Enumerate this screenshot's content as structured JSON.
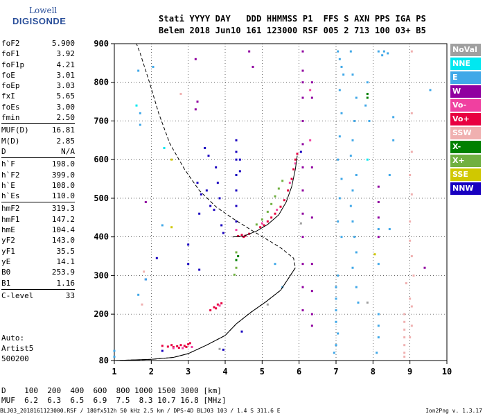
{
  "logo": {
    "line1": "Lowell",
    "line2": "DIGISONDE"
  },
  "header": {
    "line1": "Stati YYYY DAY   DDD HHMMSS P1  FFS S AXN PPS IGA PS",
    "line2": "Belem 2018 Jun10 161 123000 RSF 005 2 713 100 03+ B5"
  },
  "params": [
    [
      {
        "k": "foF2",
        "v": "5.900"
      },
      {
        "k": "foF1",
        "v": "3.92"
      },
      {
        "k": "foF1p",
        "v": "4.21"
      },
      {
        "k": "foE",
        "v": "3.01"
      },
      {
        "k": "foEp",
        "v": "3.03"
      },
      {
        "k": "fxI",
        "v": "5.65"
      },
      {
        "k": "foEs",
        "v": "3.00"
      },
      {
        "k": "fmin",
        "v": "2.50"
      }
    ],
    [
      {
        "k": "MUF(D)",
        "v": "16.81"
      },
      {
        "k": "M(D)",
        "v": "2.85"
      },
      {
        "k": "D",
        "v": "N/A"
      }
    ],
    [
      {
        "k": "h`F",
        "v": "198.0"
      },
      {
        "k": "h`F2",
        "v": "399.0"
      },
      {
        "k": "h`E",
        "v": "108.0"
      },
      {
        "k": "h`Es",
        "v": "110.0"
      }
    ],
    [
      {
        "k": "hmF2",
        "v": "319.3"
      },
      {
        "k": "hmF1",
        "v": "147.2"
      },
      {
        "k": "hmE",
        "v": "104.4"
      },
      {
        "k": "yF2",
        "v": "143.0"
      },
      {
        "k": "yF1",
        "v": "35.5"
      },
      {
        "k": "yE",
        "v": "14.1"
      },
      {
        "k": "B0",
        "v": "253.9"
      },
      {
        "k": "B1",
        "v": "1.16"
      }
    ],
    [
      {
        "k": "C-level",
        "v": "33"
      }
    ]
  ],
  "artist": {
    "l1": "Auto:",
    "l2": "Artist5",
    "l3": "500200"
  },
  "muf_table": {
    "d_label": "D  ",
    "d_values": "  100  200  400  600  800 1000 1500 3000 [km]",
    "muf_label": "MUF",
    "muf_values": "  6.2  6.3  6.5  6.9  7.5  8.3 10.7 16.8 [MHz]"
  },
  "footer": "BLJ03_2018161123000.RSF / 180fx512h 50 kHz 2.5 km / DPS-4D BLJ03 103 / 1.4 S 311.6 E",
  "footer_version": "Ion2Png v. 1.3.17",
  "legend": [
    {
      "label": "NoVal",
      "color": "#a0a0a0"
    },
    {
      "label": "NNE",
      "color": "#00e8f0"
    },
    {
      "label": "E",
      "color": "#40a8e8"
    },
    {
      "label": "W",
      "color": "#9000a0"
    },
    {
      "label": "Vo-",
      "color": "#f040a0"
    },
    {
      "label": "Vo+",
      "color": "#e80040"
    },
    {
      "label": "SSW",
      "color": "#f0b0b0"
    },
    {
      "label": "X-",
      "color": "#008000"
    },
    {
      "label": "X+",
      "color": "#70b040"
    },
    {
      "label": "SSE",
      "color": "#d0c800"
    },
    {
      "label": "NNW",
      "color": "#1800c0"
    }
  ],
  "chart_data": {
    "type": "scatter",
    "x_ticks": [
      "1",
      "2",
      "3",
      "4",
      "5",
      "6",
      "7",
      "8",
      "9",
      "10"
    ],
    "y_ticks": [
      "80",
      "200",
      "300",
      "400",
      "500",
      "600",
      "700",
      "800",
      "900"
    ],
    "xlim": [
      1,
      10
    ],
    "ylim": [
      80,
      900
    ],
    "grid": true,
    "profile_curve": [
      [
        1.0,
        80
      ],
      [
        2.0,
        83
      ],
      [
        2.6,
        88
      ],
      [
        3.0,
        98
      ],
      [
        3.5,
        120
      ],
      [
        4.0,
        145
      ],
      [
        4.3,
        175
      ],
      [
        4.7,
        205
      ],
      [
        5.1,
        232
      ],
      [
        5.5,
        262
      ],
      [
        5.75,
        298
      ],
      [
        5.9,
        320
      ],
      [
        5.85,
        345
      ],
      [
        5.5,
        372
      ],
      [
        5.1,
        395
      ],
      [
        4.7,
        418
      ],
      [
        4.2,
        448
      ],
      [
        3.75,
        478
      ],
      [
        3.3,
        520
      ],
      [
        2.9,
        575
      ],
      [
        2.5,
        642
      ],
      [
        2.2,
        720
      ],
      [
        1.95,
        800
      ],
      [
        1.7,
        875
      ],
      [
        1.6,
        900
      ]
    ],
    "trace_curve": [
      [
        4.2,
        400
      ],
      [
        4.5,
        402
      ],
      [
        4.85,
        415
      ],
      [
        5.15,
        432
      ],
      [
        5.45,
        457
      ],
      [
        5.65,
        490
      ],
      [
        5.8,
        530
      ],
      [
        5.9,
        575
      ],
      [
        5.95,
        610
      ]
    ],
    "echo_series": [
      {
        "name": "Vo+",
        "color": "#e80040",
        "points": [
          [
            2.3,
            118
          ],
          [
            2.45,
            116
          ],
          [
            2.6,
            115
          ],
          [
            2.7,
            117
          ],
          [
            2.8,
            120
          ],
          [
            2.9,
            118
          ],
          [
            3.0,
            122
          ],
          [
            3.05,
            125
          ],
          [
            2.95,
            115
          ],
          [
            2.75,
            113
          ],
          [
            2.55,
            120
          ],
          [
            3.6,
            210
          ],
          [
            3.7,
            218
          ],
          [
            3.8,
            225
          ],
          [
            3.9,
            228
          ],
          [
            3.75,
            215
          ],
          [
            4.35,
            402
          ],
          [
            4.45,
            405
          ],
          [
            4.55,
            403
          ],
          [
            4.65,
            408
          ],
          [
            4.5,
            400
          ],
          [
            4.95,
            425
          ],
          [
            5.05,
            430
          ],
          [
            5.15,
            440
          ],
          [
            5.25,
            450
          ],
          [
            5.35,
            460
          ],
          [
            5.5,
            478
          ],
          [
            5.6,
            495
          ],
          [
            5.7,
            520
          ],
          [
            5.8,
            550
          ],
          [
            5.85,
            575
          ],
          [
            5.9,
            600
          ],
          [
            5.95,
            615
          ]
        ]
      },
      {
        "name": "Vo-",
        "color": "#f040a0",
        "points": [
          [
            2.6,
            112
          ],
          [
            2.85,
            112
          ],
          [
            3.1,
            115
          ],
          [
            3.85,
            222
          ],
          [
            4.3,
            418
          ],
          [
            5.0,
            435
          ],
          [
            5.4,
            470
          ],
          [
            5.75,
            540
          ],
          [
            5.9,
            590
          ],
          [
            6.3,
            780
          ],
          [
            6.3,
            650
          ]
        ]
      },
      {
        "name": "X+",
        "color": "#70b040",
        "points": [
          [
            4.25,
            302
          ],
          [
            4.3,
            320
          ],
          [
            4.3,
            360
          ],
          [
            4.85,
            432
          ],
          [
            5.0,
            445
          ],
          [
            5.15,
            465
          ],
          [
            5.25,
            485
          ],
          [
            5.35,
            505
          ],
          [
            5.45,
            525
          ],
          [
            5.55,
            545
          ]
        ]
      },
      {
        "name": "X-",
        "color": "#008000",
        "points": [
          [
            4.3,
            340
          ],
          [
            4.35,
            350
          ],
          [
            7.85,
            770
          ],
          [
            7.85,
            760
          ]
        ]
      },
      {
        "name": "W",
        "color": "#9000a0",
        "points": [
          [
            3.2,
            860
          ],
          [
            3.25,
            750
          ],
          [
            3.2,
            730
          ],
          [
            4.65,
            880
          ],
          [
            4.75,
            840
          ],
          [
            6.1,
            880
          ],
          [
            6.1,
            830
          ],
          [
            6.1,
            800
          ],
          [
            6.1,
            760
          ],
          [
            6.1,
            700
          ],
          [
            6.1,
            640
          ],
          [
            6.1,
            580
          ],
          [
            6.1,
            520
          ],
          [
            6.1,
            460
          ],
          [
            6.1,
            400
          ],
          [
            6.1,
            330
          ],
          [
            6.1,
            270
          ],
          [
            6.1,
            210
          ],
          [
            6.35,
            800
          ],
          [
            6.35,
            760
          ],
          [
            6.35,
            580
          ],
          [
            6.35,
            450
          ],
          [
            6.35,
            330
          ],
          [
            6.35,
            260
          ],
          [
            6.35,
            200
          ],
          [
            6.35,
            170
          ],
          [
            8.15,
            530
          ],
          [
            8.15,
            490
          ],
          [
            8.15,
            450
          ],
          [
            8.15,
            400
          ],
          [
            1.85,
            490
          ],
          [
            9.4,
            320
          ]
        ]
      },
      {
        "name": "NNW",
        "color": "#1800c0",
        "points": [
          [
            3.25,
            540
          ],
          [
            3.35,
            510
          ],
          [
            3.5,
            520
          ],
          [
            3.6,
            480
          ],
          [
            3.7,
            470
          ],
          [
            3.8,
            540
          ],
          [
            3.85,
            500
          ],
          [
            3.9,
            430
          ],
          [
            3.95,
            410
          ],
          [
            3.75,
            580
          ],
          [
            3.55,
            610
          ],
          [
            3.45,
            630
          ],
          [
            3.3,
            460
          ],
          [
            4.3,
            650
          ],
          [
            4.3,
            620
          ],
          [
            4.3,
            600
          ],
          [
            4.3,
            560
          ],
          [
            4.3,
            520
          ],
          [
            4.3,
            480
          ],
          [
            4.3,
            440
          ],
          [
            4.4,
            600
          ],
          [
            4.4,
            570
          ],
          [
            6.05,
            620
          ],
          [
            3.0,
            380
          ],
          [
            3.0,
            330
          ],
          [
            3.3,
            315
          ],
          [
            2.15,
            345
          ],
          [
            1.85,
            290
          ],
          [
            2.3,
            105
          ],
          [
            3.95,
            108
          ],
          [
            4.45,
            155
          ]
        ]
      },
      {
        "name": "E",
        "color": "#40a8e8",
        "points": [
          [
            7.05,
            880
          ],
          [
            7.1,
            860
          ],
          [
            7.15,
            840
          ],
          [
            7.2,
            820
          ],
          [
            7.1,
            780
          ],
          [
            7.15,
            720
          ],
          [
            7.1,
            660
          ],
          [
            7.05,
            600
          ],
          [
            7.15,
            550
          ],
          [
            7.1,
            500
          ],
          [
            7.05,
            440
          ],
          [
            7.15,
            400
          ],
          [
            7.05,
            300
          ],
          [
            7.0,
            270
          ],
          [
            7.0,
            240
          ],
          [
            7.0,
            210
          ],
          [
            7.0,
            180
          ],
          [
            7.05,
            150
          ],
          [
            7.0,
            120
          ],
          [
            6.95,
            100
          ],
          [
            7.4,
            880
          ],
          [
            7.45,
            820
          ],
          [
            7.55,
            760
          ],
          [
            7.5,
            700
          ],
          [
            7.45,
            650
          ],
          [
            7.4,
            610
          ],
          [
            7.55,
            560
          ],
          [
            7.45,
            520
          ],
          [
            7.4,
            480
          ],
          [
            7.45,
            440
          ],
          [
            7.5,
            400
          ],
          [
            7.55,
            360
          ],
          [
            7.45,
            320
          ],
          [
            7.55,
            270
          ],
          [
            7.6,
            230
          ],
          [
            7.85,
            800
          ],
          [
            7.8,
            740
          ],
          [
            7.9,
            700
          ],
          [
            8.15,
            880
          ],
          [
            8.25,
            870
          ],
          [
            8.3,
            880
          ],
          [
            8.4,
            875
          ],
          [
            8.15,
            420
          ],
          [
            8.15,
            200
          ],
          [
            8.15,
            170
          ],
          [
            8.15,
            140
          ],
          [
            8.1,
            100
          ],
          [
            1.65,
            830
          ],
          [
            1.7,
            720
          ],
          [
            1.7,
            690
          ],
          [
            2.05,
            840
          ],
          [
            2.3,
            430
          ],
          [
            5.35,
            330
          ],
          [
            5.55,
            270
          ],
          [
            8.55,
            710
          ],
          [
            8.55,
            650
          ],
          [
            8.45,
            560
          ],
          [
            8.45,
            420
          ],
          [
            8.15,
            330
          ],
          [
            9.55,
            780
          ],
          [
            1.0,
            105
          ],
          [
            1.0,
            90
          ],
          [
            1.85,
            290
          ],
          [
            1.65,
            250
          ]
        ]
      },
      {
        "name": "SSW",
        "color": "#f0b0b0",
        "points": [
          [
            8.85,
            200
          ],
          [
            8.85,
            180
          ],
          [
            8.85,
            160
          ],
          [
            8.85,
            140
          ],
          [
            8.85,
            120
          ],
          [
            8.85,
            100
          ],
          [
            8.85,
            90
          ],
          [
            9.0,
            240
          ],
          [
            9.05,
            220
          ],
          [
            9.05,
            170
          ],
          [
            9.0,
            140
          ],
          [
            9.1,
            300
          ],
          [
            9.05,
            880
          ],
          [
            9.05,
            720
          ],
          [
            9.05,
            620
          ],
          [
            9.0,
            560
          ],
          [
            9.05,
            510
          ],
          [
            9.0,
            440
          ],
          [
            9.0,
            390
          ],
          [
            9.05,
            350
          ],
          [
            2.8,
            770
          ],
          [
            1.75,
            225
          ],
          [
            1.8,
            310
          ],
          [
            8.9,
            280
          ]
        ]
      },
      {
        "name": "NoVal",
        "color": "#a0a0a0",
        "points": [
          [
            5.15,
            225
          ],
          [
            6.05,
            435
          ],
          [
            7.85,
            230
          ],
          [
            3.85,
            110
          ]
        ]
      },
      {
        "name": "SSE",
        "color": "#d0c800",
        "points": [
          [
            2.55,
            600
          ],
          [
            2.55,
            425
          ],
          [
            8.05,
            355
          ]
        ]
      },
      {
        "name": "NNE",
        "color": "#00e8f0",
        "points": [
          [
            1.6,
            740
          ],
          [
            2.35,
            630
          ],
          [
            7.85,
            600
          ]
        ]
      }
    ]
  }
}
